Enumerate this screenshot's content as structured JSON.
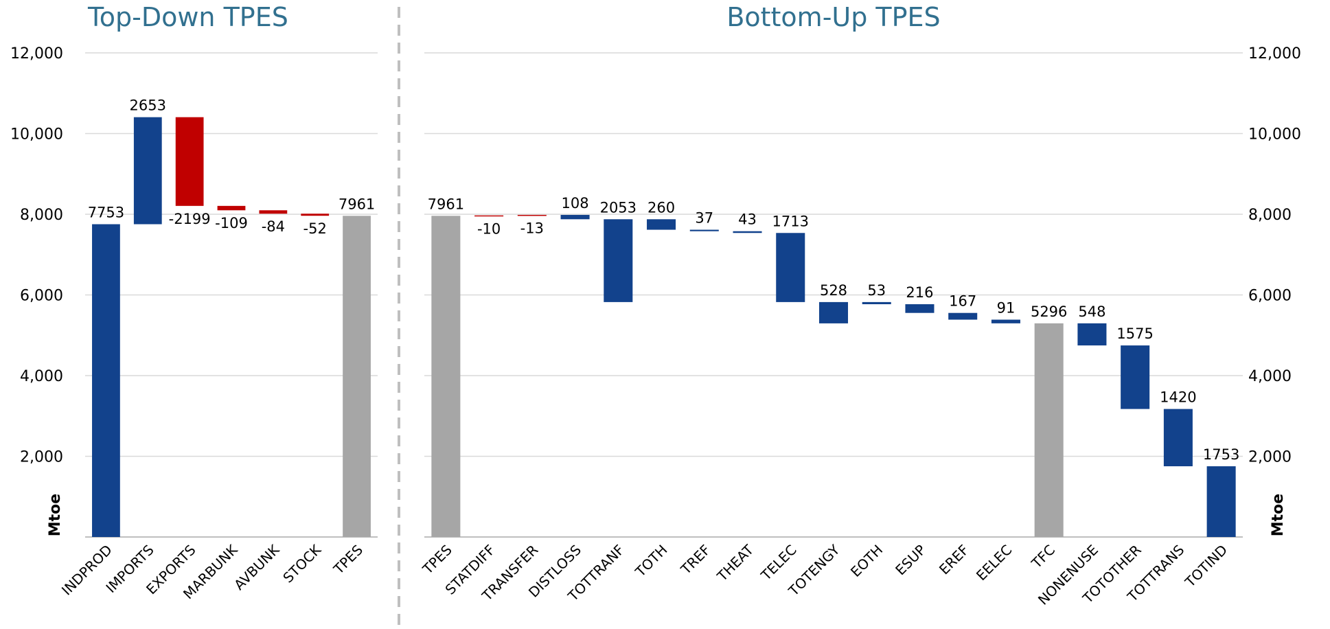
{
  "chart_data": [
    {
      "type": "waterfall",
      "title": "Top-Down TPES",
      "ylabel": "Mtoe",
      "flow": "add",
      "yaxis_side": "left",
      "categories": [
        "INDPROD",
        "IMPORTS",
        "EXPORTS",
        "MARBUNK",
        "AVBUNK",
        "STOCK",
        "TPES"
      ],
      "values": [
        7753,
        2653,
        -2199,
        -109,
        -84,
        -52,
        7961
      ],
      "roles": [
        "step",
        "step",
        "step",
        "step",
        "step",
        "step",
        "total"
      ],
      "colors": {
        "positive": "#12428c",
        "negative": "#c00000",
        "total": "#a6a6a6"
      },
      "ylim": [
        0,
        12000
      ],
      "yticks": [
        {
          "value": 2000,
          "label": "2,000"
        },
        {
          "value": 4000,
          "label": "4,000"
        },
        {
          "value": 6000,
          "label": "6,000"
        },
        {
          "value": 8000,
          "label": "8,000"
        },
        {
          "value": 10000,
          "label": "10,000"
        },
        {
          "value": 12000,
          "label": "12,000"
        }
      ],
      "grid": true
    },
    {
      "type": "waterfall",
      "title": "Bottom-Up TPES",
      "ylabel": "Mtoe",
      "flow": "subtract",
      "yaxis_side": "right",
      "categories": [
        "TPES",
        "STATDIFF",
        "TRANSFER",
        "DISTLOSS",
        "TOTTRANF",
        "TOTH",
        "TREF",
        "THEAT",
        "TELEC",
        "TOTENGY",
        "EOTH",
        "ESUP",
        "EREF",
        "EELEC",
        "TFC",
        "NONENUSE",
        "TOTOTHER",
        "TOTTRANS",
        "TOTIND"
      ],
      "values": [
        7961,
        -10,
        -13,
        108,
        2053,
        260,
        37,
        43,
        1713,
        528,
        53,
        216,
        167,
        91,
        5296,
        548,
        1575,
        1420,
        1753
      ],
      "roles": [
        "total",
        "step",
        "step",
        "step",
        "group",
        "step",
        "step",
        "step",
        "step",
        "group",
        "step",
        "step",
        "step",
        "step",
        "total",
        "step",
        "step",
        "step",
        "step"
      ],
      "colors": {
        "positive": "#12428c",
        "negative": "#c00000",
        "total": "#a6a6a6"
      },
      "ylim": [
        0,
        12000
      ],
      "yticks": [
        {
          "value": 2000,
          "label": "2,000"
        },
        {
          "value": 4000,
          "label": "4,000"
        },
        {
          "value": 6000,
          "label": "6,000"
        },
        {
          "value": 8000,
          "label": "8,000"
        },
        {
          "value": 10000,
          "label": "10,000"
        },
        {
          "value": 12000,
          "label": "12,000"
        }
      ],
      "grid": true
    }
  ]
}
